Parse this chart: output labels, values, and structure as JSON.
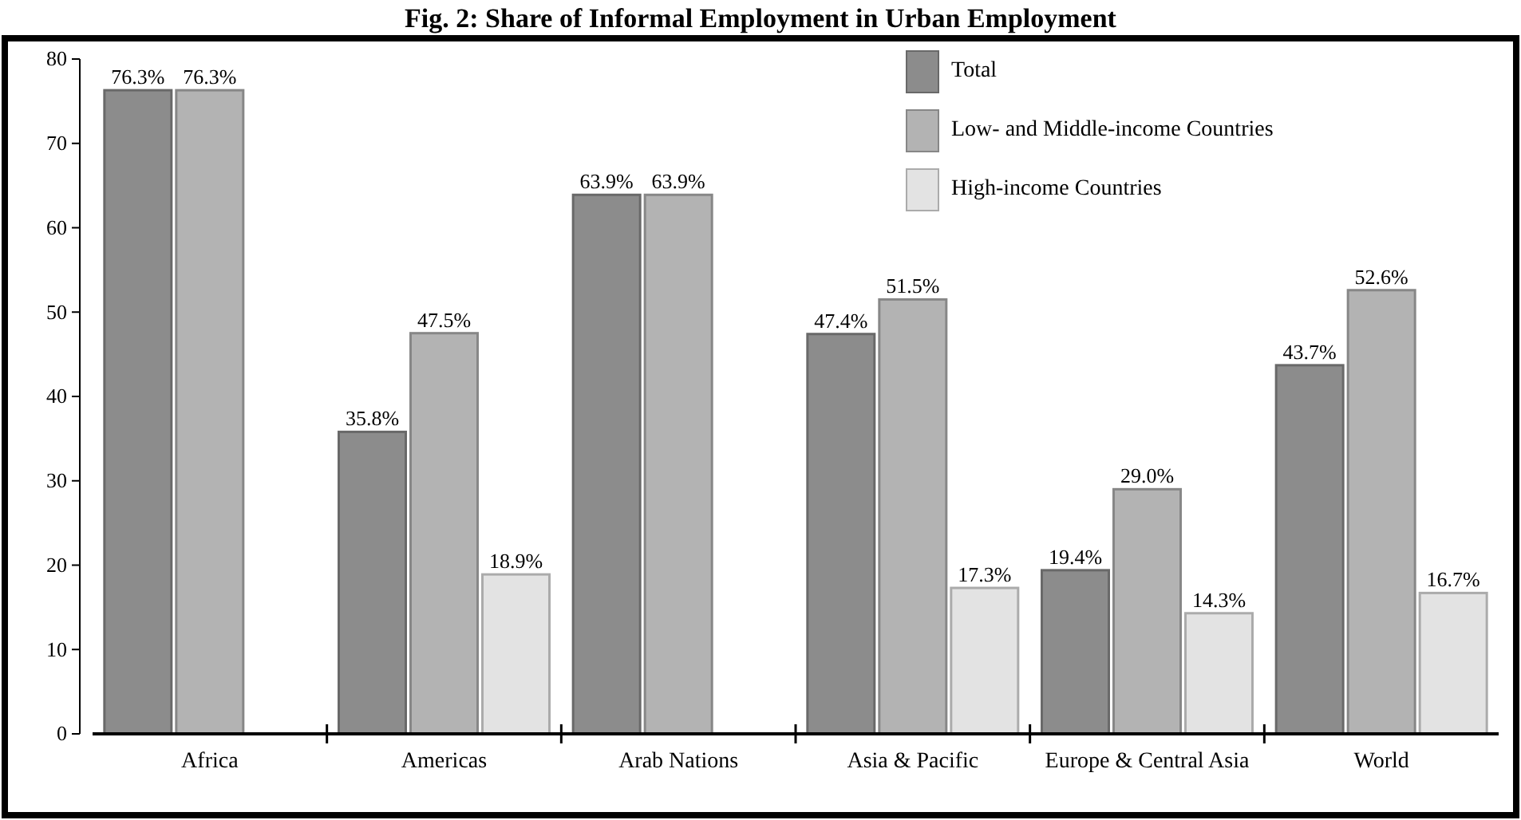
{
  "chart_data": {
    "type": "bar",
    "title": "Fig. 2: Share of Informal Employment in Urban Employment",
    "categories": [
      "Africa",
      "Americas",
      "Arab Nations",
      "Asia & Pacific",
      "Europe & Central Asia",
      "World"
    ],
    "series": [
      {
        "name": "Total",
        "color": "#8c8c8c",
        "values": [
          76.3,
          35.8,
          63.9,
          47.4,
          19.4,
          43.7
        ],
        "value_labels": [
          "76.3%",
          "35.8%",
          "63.9%",
          "47.4%",
          "19.4%",
          "43.7%"
        ]
      },
      {
        "name": "Low- and Middle-income Countries",
        "color": "#b3b3b3",
        "values": [
          76.3,
          47.5,
          63.9,
          51.5,
          29.0,
          52.6
        ],
        "value_labels": [
          "76.3%",
          "47.5%",
          "63.9%",
          "51.5%",
          "29.0%",
          "52.6%"
        ]
      },
      {
        "name": "High-income Countries",
        "color": "#e3e3e3",
        "values": [
          null,
          18.9,
          null,
          17.3,
          14.3,
          16.7
        ],
        "value_labels": [
          null,
          "18.9%",
          null,
          "17.3%",
          "14.3%",
          "16.7%"
        ]
      }
    ],
    "ylim": [
      0,
      80
    ],
    "yticks": [
      0,
      10,
      20,
      30,
      40,
      50,
      60,
      70,
      80
    ],
    "grid": false,
    "legend": "top right"
  }
}
